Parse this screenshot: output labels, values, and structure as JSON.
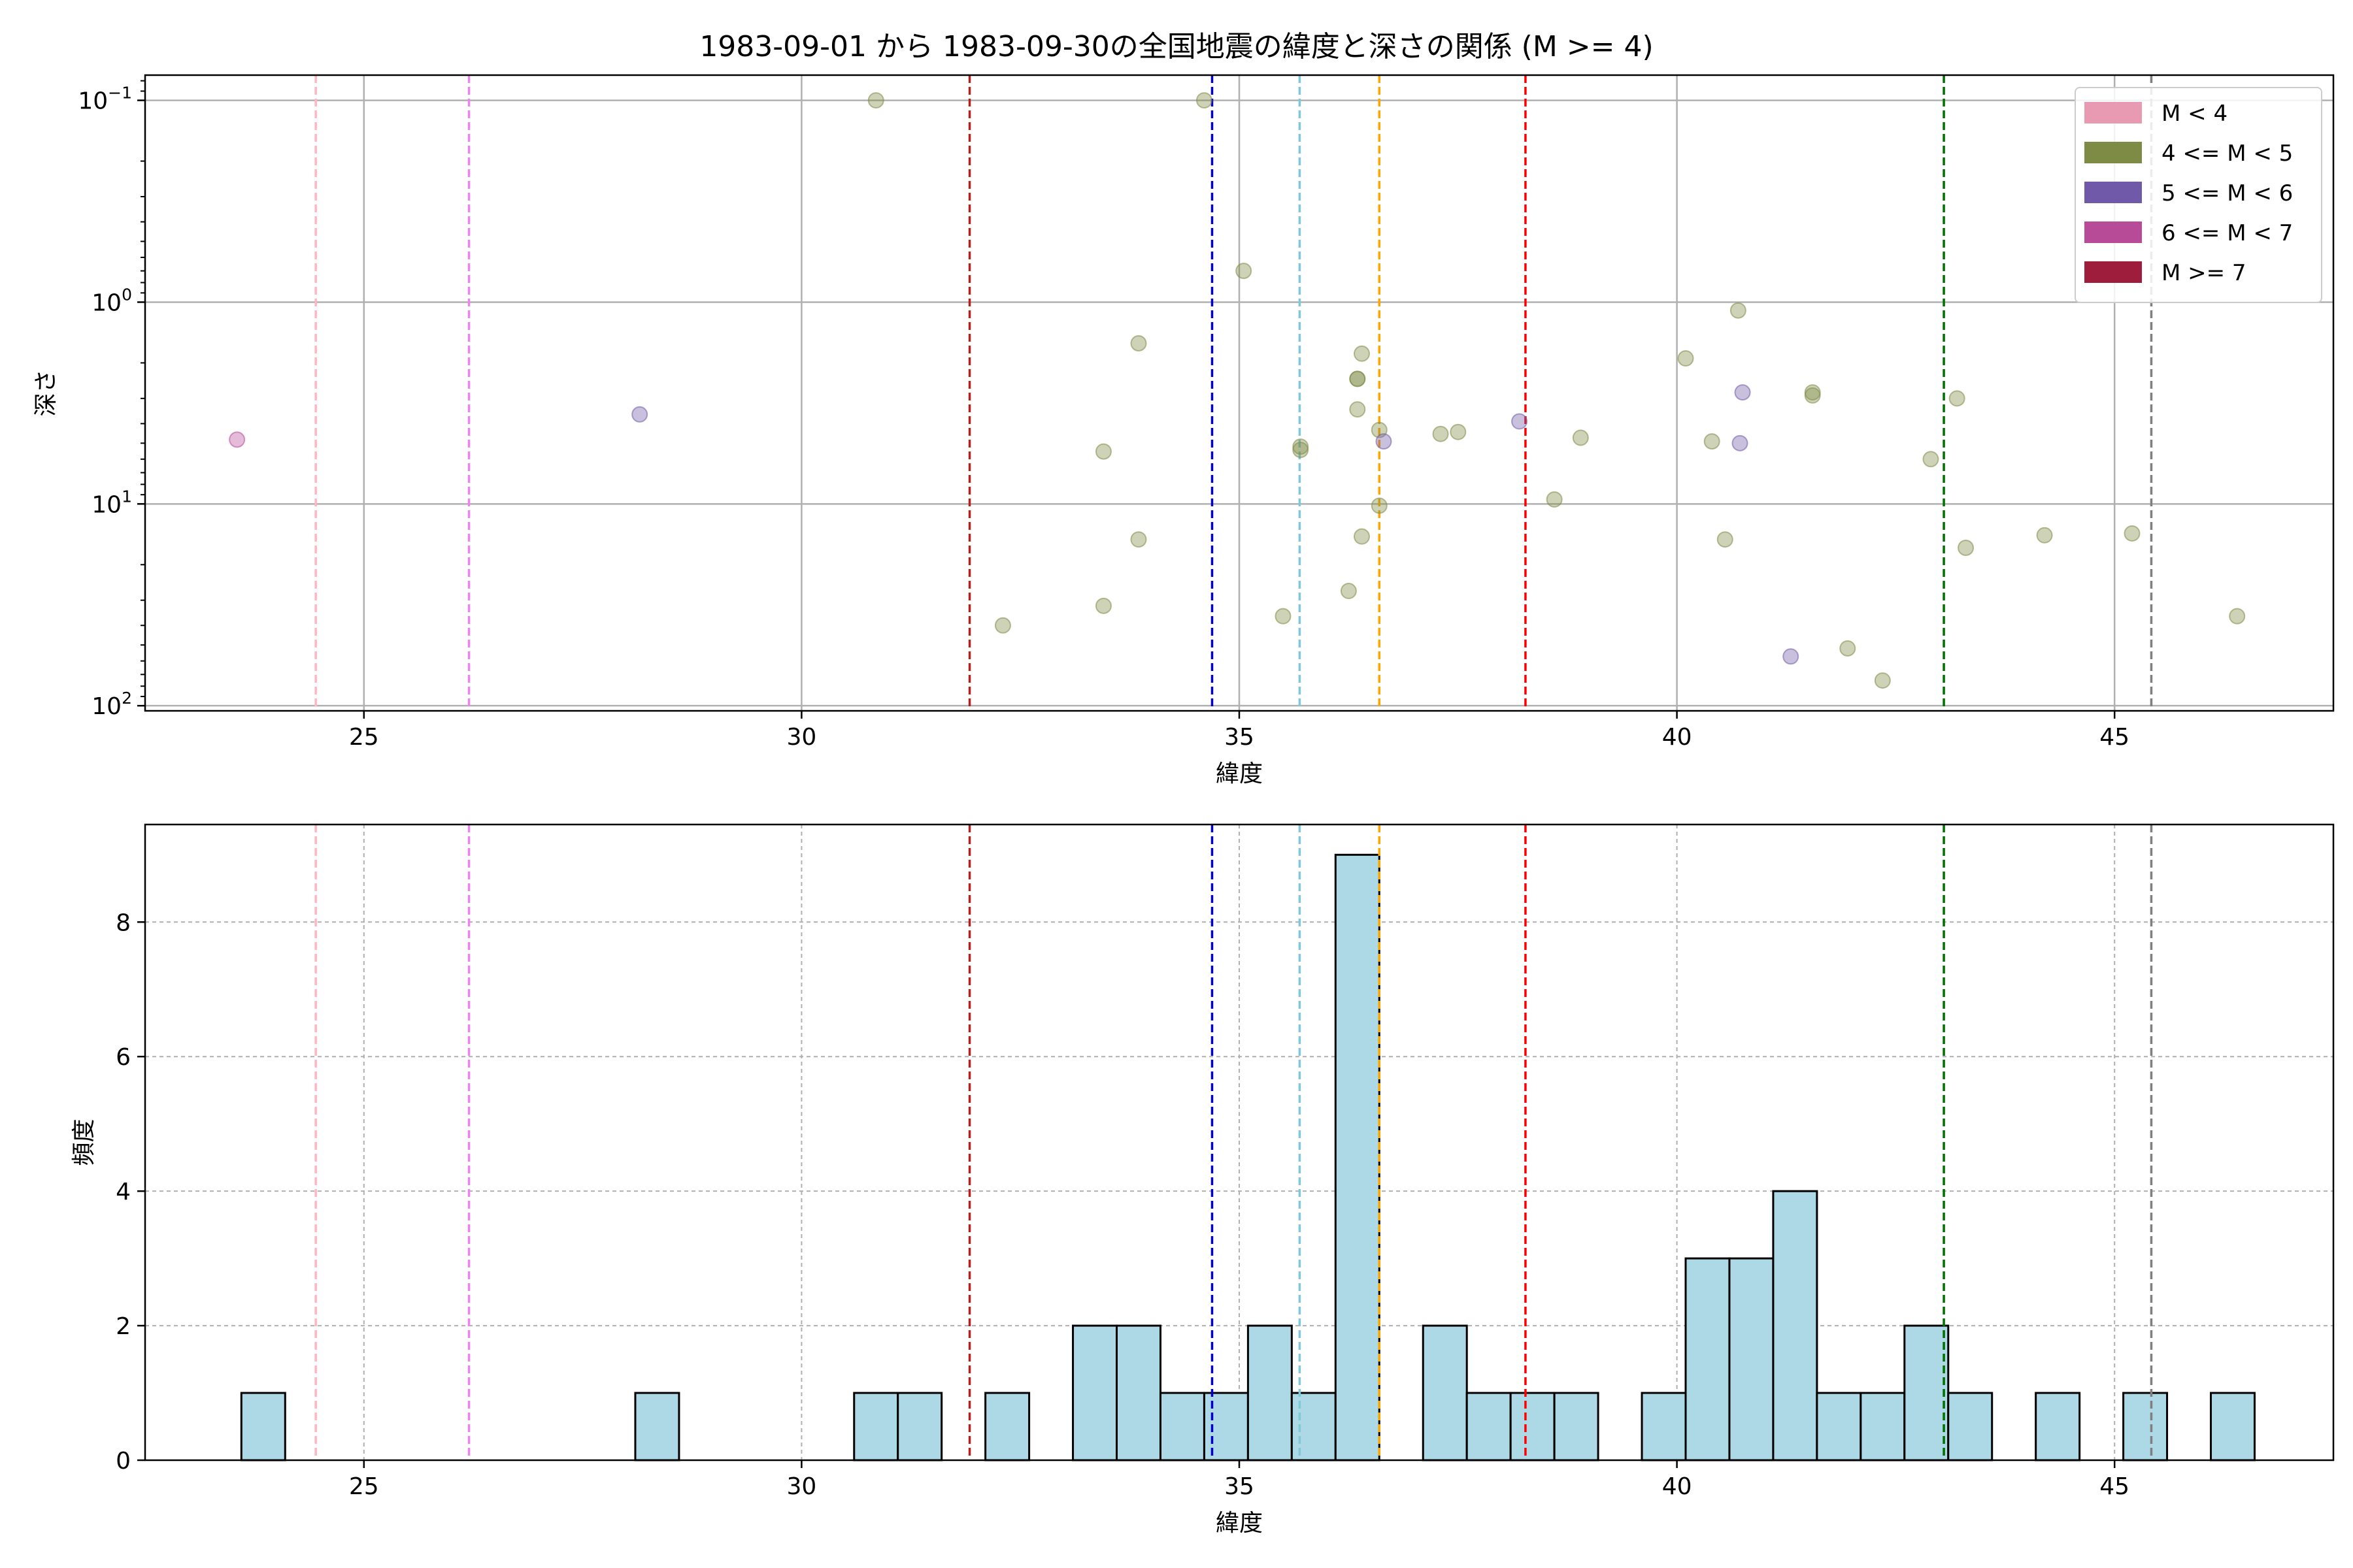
{
  "figure": {
    "title": "1983-09-01 から 1983-09-30の全国地震の緯度と深さの関係 (M >= 4)"
  },
  "chart_data": [
    {
      "type": "scatter",
      "xlabel": "緯度",
      "ylabel": "深さ",
      "x_ticks": [
        25,
        30,
        35,
        40,
        45
      ],
      "xlim": [
        22.5,
        47.5
      ],
      "y_scale": "log",
      "y_inverted": true,
      "ylim": [
        0.075,
        106
      ],
      "y_ticks": [
        {
          "value": 0.1,
          "base": "10",
          "exp": "−1"
        },
        {
          "value": 1,
          "base": "10",
          "exp": "0"
        },
        {
          "value": 10,
          "base": "10",
          "exp": "1"
        },
        {
          "value": 100,
          "base": "10",
          "exp": "2"
        }
      ],
      "grid": true,
      "legend_position": "top-right",
      "legend": [
        {
          "label": "M < 4",
          "color": "#e89ab3"
        },
        {
          "label": "4 <= M < 5",
          "color": "#7d8b45"
        },
        {
          "label": "5 <= M < 6",
          "color": "#7059a8"
        },
        {
          "label": "6 <= M < 7",
          "color": "#b84b98"
        },
        {
          "label": "M >= 7",
          "color": "#9e1c3c"
        }
      ],
      "vlines": [
        {
          "x": 24.45,
          "color": "#ffb6c1"
        },
        {
          "x": 26.2,
          "color": "#ee82ee"
        },
        {
          "x": 31.92,
          "color": "#b22222"
        },
        {
          "x": 34.69,
          "color": "#0000cd"
        },
        {
          "x": 35.69,
          "color": "#7ec8d8"
        },
        {
          "x": 36.6,
          "color": "#ffa500"
        },
        {
          "x": 38.27,
          "color": "#ff0000"
        },
        {
          "x": 43.05,
          "color": "#007000"
        },
        {
          "x": 45.42,
          "color": "#808080"
        }
      ],
      "series": [
        {
          "category": "4 <= M < 5",
          "color": "#7d8b45",
          "points": [
            {
              "x": 30.85,
              "y": 0.1
            },
            {
              "x": 34.6,
              "y": 0.1
            },
            {
              "x": 35.05,
              "y": 0.7
            },
            {
              "x": 33.85,
              "y": 1.6
            },
            {
              "x": 33.45,
              "y": 5.5
            },
            {
              "x": 33.85,
              "y": 15
            },
            {
              "x": 33.45,
              "y": 32
            },
            {
              "x": 32.3,
              "y": 40
            },
            {
              "x": 35.5,
              "y": 36
            },
            {
              "x": 35.7,
              "y": 5.2
            },
            {
              "x": 35.7,
              "y": 5.4
            },
            {
              "x": 36.4,
              "y": 1.8
            },
            {
              "x": 36.35,
              "y": 2.4
            },
            {
              "x": 36.35,
              "y": 2.4
            },
            {
              "x": 36.35,
              "y": 3.4
            },
            {
              "x": 36.6,
              "y": 4.3
            },
            {
              "x": 36.6,
              "y": 10.2
            },
            {
              "x": 36.4,
              "y": 14.5
            },
            {
              "x": 36.25,
              "y": 27
            },
            {
              "x": 37.3,
              "y": 4.5
            },
            {
              "x": 37.5,
              "y": 4.4
            },
            {
              "x": 38.6,
              "y": 9.5
            },
            {
              "x": 38.9,
              "y": 4.7
            },
            {
              "x": 40.1,
              "y": 1.9
            },
            {
              "x": 40.4,
              "y": 4.9
            },
            {
              "x": 40.7,
              "y": 1.1
            },
            {
              "x": 40.55,
              "y": 15
            },
            {
              "x": 41.55,
              "y": 2.8
            },
            {
              "x": 41.55,
              "y": 2.9
            },
            {
              "x": 41.95,
              "y": 52
            },
            {
              "x": 42.35,
              "y": 75
            },
            {
              "x": 42.9,
              "y": 6
            },
            {
              "x": 43.2,
              "y": 3
            },
            {
              "x": 43.3,
              "y": 16.5
            },
            {
              "x": 44.2,
              "y": 14.3
            },
            {
              "x": 45.2,
              "y": 14
            },
            {
              "x": 46.4,
              "y": 36
            }
          ]
        },
        {
          "category": "5 <= M < 6",
          "color": "#7059a8",
          "points": [
            {
              "x": 28.15,
              "y": 3.6
            },
            {
              "x": 36.65,
              "y": 4.9
            },
            {
              "x": 38.2,
              "y": 3.9
            },
            {
              "x": 40.75,
              "y": 2.8
            },
            {
              "x": 40.72,
              "y": 5
            },
            {
              "x": 41.3,
              "y": 57
            }
          ]
        },
        {
          "category": "6 <= M < 7",
          "color": "#b84b98",
          "points": [
            {
              "x": 23.55,
              "y": 4.8
            }
          ]
        }
      ]
    },
    {
      "type": "bar",
      "subtype": "histogram",
      "xlabel": "緯度",
      "ylabel": "頻度",
      "x_ticks": [
        25,
        30,
        35,
        40,
        45
      ],
      "xlim": [
        22.5,
        47.5
      ],
      "ylim": [
        0,
        9.45
      ],
      "y_ticks": [
        0,
        2,
        4,
        6,
        8
      ],
      "grid": true,
      "bar_color": "#add8e6",
      "bins": [
        {
          "x0": 23.6,
          "x1": 24.1,
          "count": 1
        },
        {
          "x0": 28.1,
          "x1": 28.6,
          "count": 1
        },
        {
          "x0": 30.6,
          "x1": 31.1,
          "count": 1
        },
        {
          "x0": 31.1,
          "x1": 31.6,
          "count": 1
        },
        {
          "x0": 32.1,
          "x1": 32.6,
          "count": 1
        },
        {
          "x0": 33.1,
          "x1": 33.6,
          "count": 2
        },
        {
          "x0": 33.6,
          "x1": 34.1,
          "count": 2
        },
        {
          "x0": 34.1,
          "x1": 34.6,
          "count": 1
        },
        {
          "x0": 34.6,
          "x1": 35.1,
          "count": 1
        },
        {
          "x0": 35.1,
          "x1": 35.6,
          "count": 2
        },
        {
          "x0": 35.6,
          "x1": 36.1,
          "count": 1
        },
        {
          "x0": 36.1,
          "x1": 36.6,
          "count": 9
        },
        {
          "x0": 37.1,
          "x1": 37.6,
          "count": 2
        },
        {
          "x0": 37.6,
          "x1": 38.1,
          "count": 1
        },
        {
          "x0": 38.1,
          "x1": 38.6,
          "count": 1
        },
        {
          "x0": 38.6,
          "x1": 39.1,
          "count": 1
        },
        {
          "x0": 39.6,
          "x1": 40.1,
          "count": 1
        },
        {
          "x0": 40.1,
          "x1": 40.6,
          "count": 3
        },
        {
          "x0": 40.6,
          "x1": 41.1,
          "count": 3
        },
        {
          "x0": 41.1,
          "x1": 41.6,
          "count": 4
        },
        {
          "x0": 41.6,
          "x1": 42.1,
          "count": 1
        },
        {
          "x0": 42.1,
          "x1": 42.6,
          "count": 1
        },
        {
          "x0": 42.6,
          "x1": 43.1,
          "count": 2
        },
        {
          "x0": 43.1,
          "x1": 43.6,
          "count": 1
        },
        {
          "x0": 44.1,
          "x1": 44.6,
          "count": 1
        },
        {
          "x0": 45.1,
          "x1": 45.6,
          "count": 1
        },
        {
          "x0": 46.1,
          "x1": 46.6,
          "count": 1
        }
      ],
      "vlines": [
        {
          "x": 24.45,
          "color": "#ffb6c1"
        },
        {
          "x": 26.2,
          "color": "#ee82ee"
        },
        {
          "x": 31.92,
          "color": "#b22222"
        },
        {
          "x": 34.69,
          "color": "#0000cd"
        },
        {
          "x": 35.69,
          "color": "#7ec8d8"
        },
        {
          "x": 36.6,
          "color": "#ffa500"
        },
        {
          "x": 38.27,
          "color": "#ff0000"
        },
        {
          "x": 43.05,
          "color": "#007000"
        },
        {
          "x": 45.42,
          "color": "#808080"
        }
      ]
    }
  ]
}
